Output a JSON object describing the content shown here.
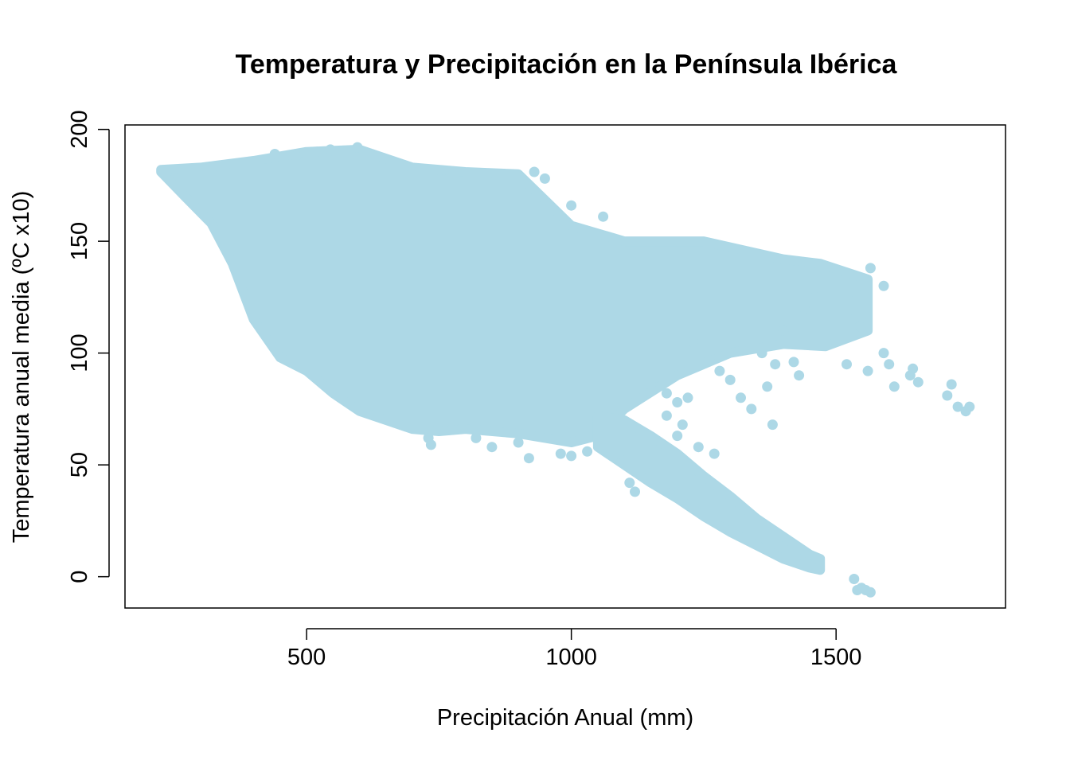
{
  "chart_data": {
    "type": "scatter",
    "title": "Temperatura y Precipitación en la Península Ibérica",
    "xlabel": "Precipitación Anual (mm)",
    "ylabel": "Temperatura anual media (ºC x10)",
    "xlim": [
      157,
      1820
    ],
    "ylim": [
      -14,
      202
    ],
    "x_ticks": [
      500,
      1000,
      1500
    ],
    "y_ticks": [
      0,
      50,
      100,
      150,
      200
    ],
    "x_tick_labels": [
      "500",
      "1000",
      "1500"
    ],
    "y_tick_labels": [
      "0",
      "50",
      "100",
      "150",
      "200"
    ],
    "point_color": "#add8e6",
    "grid": false,
    "legend": "none",
    "main_body": {
      "upper_edge": [
        [
          225,
          182
        ],
        [
          300,
          183
        ],
        [
          400,
          186
        ],
        [
          500,
          190
        ],
        [
          600,
          191
        ],
        [
          700,
          183
        ],
        [
          800,
          181
        ],
        [
          900,
          180
        ],
        [
          1000,
          157
        ],
        [
          1100,
          150
        ],
        [
          1250,
          150
        ],
        [
          1400,
          142
        ],
        [
          1470,
          140
        ],
        [
          1560,
          133
        ]
      ],
      "lower_edge": [
        [
          225,
          181
        ],
        [
          270,
          170
        ],
        [
          320,
          158
        ],
        [
          360,
          140
        ],
        [
          400,
          115
        ],
        [
          450,
          98
        ],
        [
          500,
          92
        ],
        [
          550,
          82
        ],
        [
          600,
          74
        ],
        [
          650,
          70
        ],
        [
          700,
          66
        ],
        [
          750,
          65
        ],
        [
          800,
          66
        ],
        [
          900,
          64
        ],
        [
          1000,
          60
        ],
        [
          1050,
          63
        ],
        [
          1100,
          75
        ],
        [
          1200,
          90
        ],
        [
          1300,
          100
        ],
        [
          1400,
          104
        ],
        [
          1480,
          103
        ],
        [
          1560,
          110
        ]
      ]
    },
    "lower_tail": {
      "upper_edge": [
        [
          1050,
          72
        ],
        [
          1100,
          70
        ],
        [
          1150,
          63
        ],
        [
          1200,
          55
        ],
        [
          1250,
          45
        ],
        [
          1300,
          36
        ],
        [
          1350,
          26
        ],
        [
          1400,
          18
        ],
        [
          1450,
          10
        ],
        [
          1470,
          8
        ]
      ],
      "lower_edge": [
        [
          1050,
          58
        ],
        [
          1100,
          50
        ],
        [
          1150,
          42
        ],
        [
          1200,
          35
        ],
        [
          1250,
          27
        ],
        [
          1300,
          20
        ],
        [
          1350,
          14
        ],
        [
          1400,
          8
        ],
        [
          1450,
          4
        ],
        [
          1470,
          3
        ]
      ]
    },
    "points": [
      [
        1534,
        -1
      ],
      [
        1540,
        -6
      ],
      [
        1548,
        -5
      ],
      [
        1556,
        -6
      ],
      [
        1565,
        -7
      ],
      [
        1610,
        85
      ],
      [
        1645,
        93
      ],
      [
        1655,
        87
      ],
      [
        1640,
        90
      ],
      [
        1600,
        95
      ],
      [
        1590,
        100
      ],
      [
        1710,
        81
      ],
      [
        1718,
        86
      ],
      [
        1730,
        76
      ],
      [
        1745,
        74
      ],
      [
        1752,
        76
      ],
      [
        1565,
        138
      ],
      [
        1590,
        130
      ],
      [
        1540,
        126
      ],
      [
        1520,
        118
      ],
      [
        1545,
        112
      ],
      [
        1500,
        105
      ],
      [
        1520,
        95
      ],
      [
        1560,
        92
      ],
      [
        1060,
        161
      ],
      [
        1000,
        166
      ],
      [
        950,
        178
      ],
      [
        930,
        181
      ],
      [
        596,
        192
      ],
      [
        545,
        191
      ],
      [
        520,
        190
      ],
      [
        480,
        188
      ],
      [
        440,
        189
      ],
      [
        1380,
        68
      ],
      [
        1340,
        75
      ],
      [
        1320,
        80
      ],
      [
        1300,
        88
      ],
      [
        1280,
        92
      ],
      [
        1260,
        97
      ],
      [
        1230,
        105
      ],
      [
        1270,
        55
      ],
      [
        1240,
        58
      ],
      [
        1200,
        63
      ],
      [
        1210,
        68
      ],
      [
        1180,
        72
      ],
      [
        1120,
        38
      ],
      [
        1110,
        42
      ],
      [
        1140,
        50
      ],
      [
        1090,
        55
      ],
      [
        920,
        53
      ],
      [
        900,
        60
      ],
      [
        850,
        58
      ],
      [
        820,
        62
      ],
      [
        735,
        59
      ],
      [
        730,
        62
      ],
      [
        980,
        55
      ],
      [
        1000,
        54
      ],
      [
        1030,
        56
      ],
      [
        1150,
        86
      ],
      [
        1180,
        82
      ],
      [
        1200,
        78
      ],
      [
        1220,
        80
      ],
      [
        1430,
        90
      ],
      [
        1420,
        96
      ],
      [
        1400,
        110
      ],
      [
        1440,
        120
      ],
      [
        1460,
        125
      ],
      [
        1370,
        85
      ],
      [
        1385,
        95
      ],
      [
        1360,
        100
      ]
    ]
  }
}
